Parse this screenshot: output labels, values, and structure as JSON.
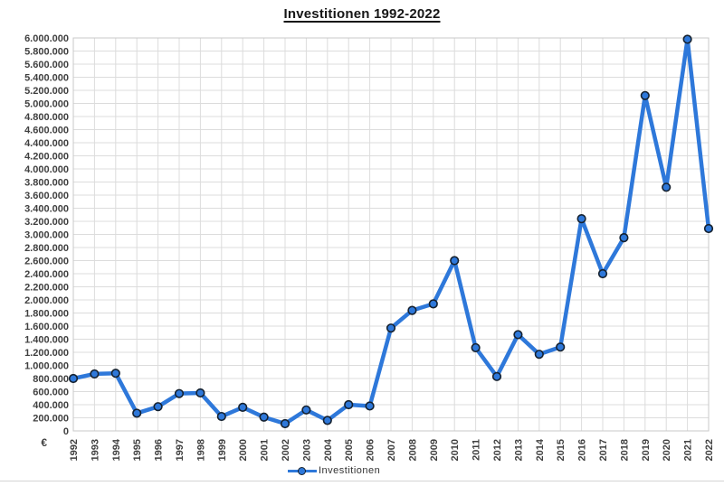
{
  "title": "Investitionen 1992-2022",
  "legend": {
    "label": "Investitionen"
  },
  "colors": {
    "line": "#2e78da",
    "marker_fill": "#2e78da",
    "marker_stroke": "#15212f",
    "gridline": "#dcdcdc",
    "plot_border": "#c8c8c8",
    "axis_label": "#3f3f3f",
    "title": "#161616"
  },
  "chart_data": {
    "type": "line",
    "title": "Investitionen 1992-2022",
    "categories": [
      "1992",
      "1993",
      "1994",
      "1995",
      "1996",
      "1997",
      "1998",
      "1999",
      "2000",
      "2001",
      "2002",
      "2003",
      "2004",
      "2005",
      "2006",
      "2007",
      "2008",
      "2009",
      "2010",
      "2011",
      "2012",
      "2013",
      "2014",
      "2015",
      "2016",
      "2017",
      "2018",
      "2019",
      "2020",
      "2021",
      "2022"
    ],
    "series": [
      {
        "name": "Investitionen",
        "values": [
          800000,
          870000,
          880000,
          270000,
          370000,
          570000,
          580000,
          220000,
          360000,
          210000,
          110000,
          320000,
          160000,
          400000,
          380000,
          1570000,
          1840000,
          1940000,
          2600000,
          1270000,
          830000,
          1470000,
          1170000,
          1280000,
          3240000,
          2400000,
          2950000,
          5120000,
          3720000,
          5980000,
          3090000
        ]
      }
    ],
    "xlabel": "",
    "ylabel": "€",
    "ylim": [
      0,
      6000000
    ],
    "y_tick_step": 200000,
    "grid": true,
    "legend_position": "bottom",
    "number_format": "de-DE"
  }
}
